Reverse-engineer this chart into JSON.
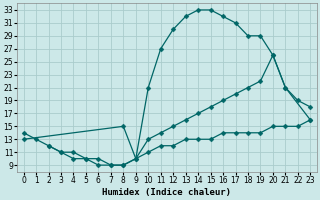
{
  "xlabel": "Humidex (Indice chaleur)",
  "bg_color": "#cce8e8",
  "grid_color": "#aacccc",
  "line_color": "#006666",
  "line_width": 0.9,
  "marker": "D",
  "marker_size": 2.5,
  "curve_top_x": [
    0,
    1,
    2,
    3,
    4,
    5,
    6,
    7,
    8,
    9,
    10,
    11,
    12,
    13,
    14,
    15,
    16,
    17,
    18,
    19,
    20,
    21,
    23
  ],
  "curve_top_y": [
    14,
    13,
    12,
    11,
    11,
    10,
    10,
    9,
    9,
    10,
    21,
    27,
    30,
    32,
    33,
    33,
    32,
    31,
    29,
    29,
    26,
    21,
    16
  ],
  "curve_mid_x": [
    0,
    8,
    9,
    10,
    11,
    12,
    13,
    14,
    15,
    16,
    17,
    18,
    19,
    20,
    21,
    22,
    23
  ],
  "curve_mid_y": [
    13,
    15,
    10,
    13,
    14,
    15,
    16,
    17,
    18,
    19,
    20,
    21,
    22,
    26,
    21,
    19,
    18
  ],
  "curve_bot_x": [
    2,
    3,
    4,
    5,
    6,
    7,
    8,
    10,
    11,
    12,
    13,
    14,
    15,
    16,
    17,
    18,
    19,
    20,
    21,
    22,
    23
  ],
  "curve_bot_y": [
    12,
    11,
    10,
    10,
    9,
    9,
    9,
    11,
    12,
    12,
    13,
    13,
    13,
    14,
    14,
    14,
    14,
    15,
    15,
    15,
    16
  ],
  "xlim": [
    -0.5,
    23.5
  ],
  "ylim": [
    8,
    34
  ],
  "xticks": [
    0,
    1,
    2,
    3,
    4,
    5,
    6,
    7,
    8,
    9,
    10,
    11,
    12,
    13,
    14,
    15,
    16,
    17,
    18,
    19,
    20,
    21,
    22,
    23
  ],
  "yticks": [
    9,
    11,
    13,
    15,
    17,
    19,
    21,
    23,
    25,
    27,
    29,
    31,
    33
  ]
}
